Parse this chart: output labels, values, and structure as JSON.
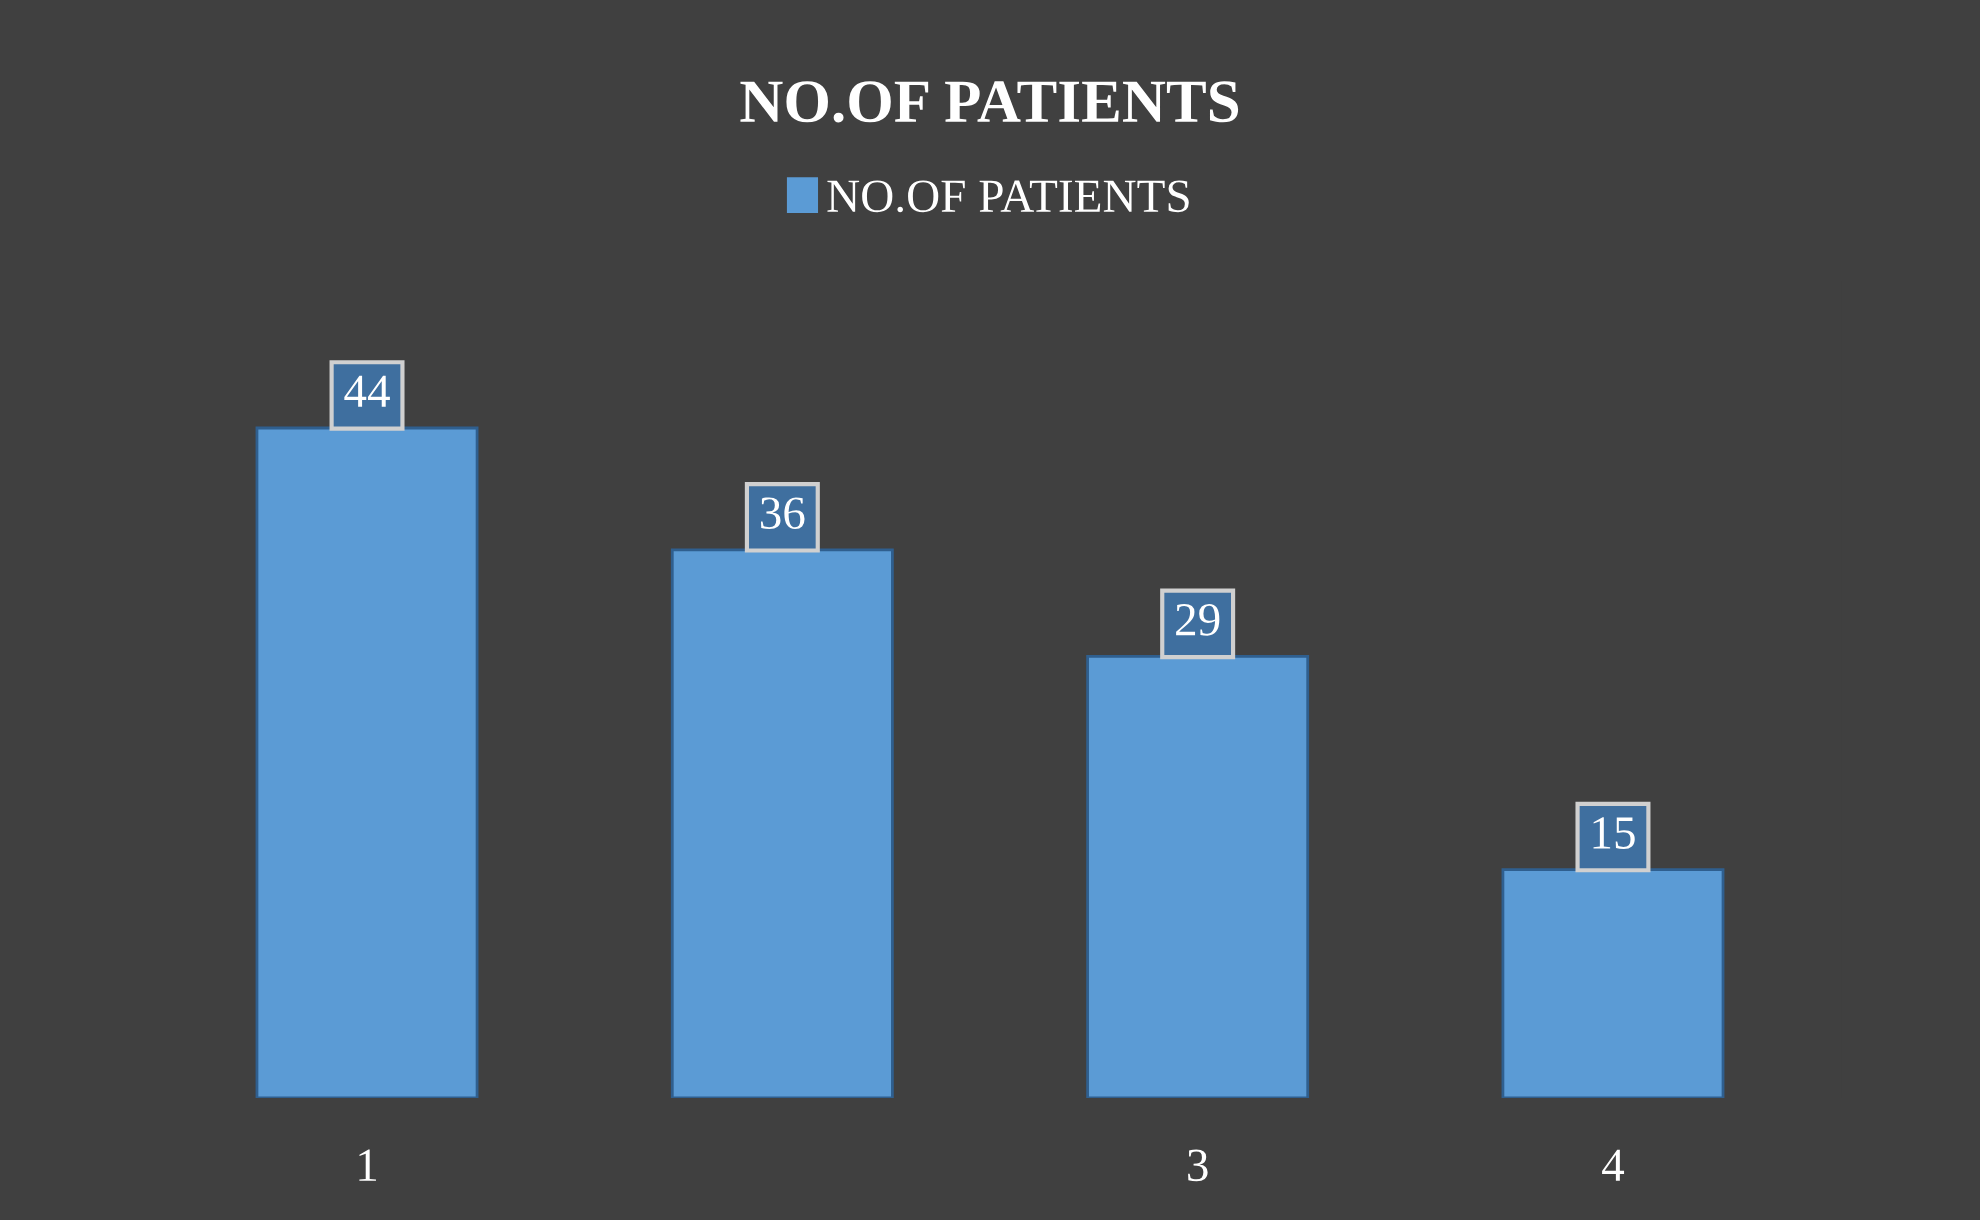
{
  "chart_data": {
    "type": "bar",
    "title": "NO.OF PATIENTS",
    "categories": [
      "1",
      null,
      "3",
      "4"
    ],
    "series": [
      {
        "name": "NO.OF PATIENTS",
        "color": "#5b9bd5",
        "values": [
          44,
          36,
          29,
          15
        ]
      }
    ],
    "data_labels": true,
    "legend": "top",
    "grid": false
  }
}
